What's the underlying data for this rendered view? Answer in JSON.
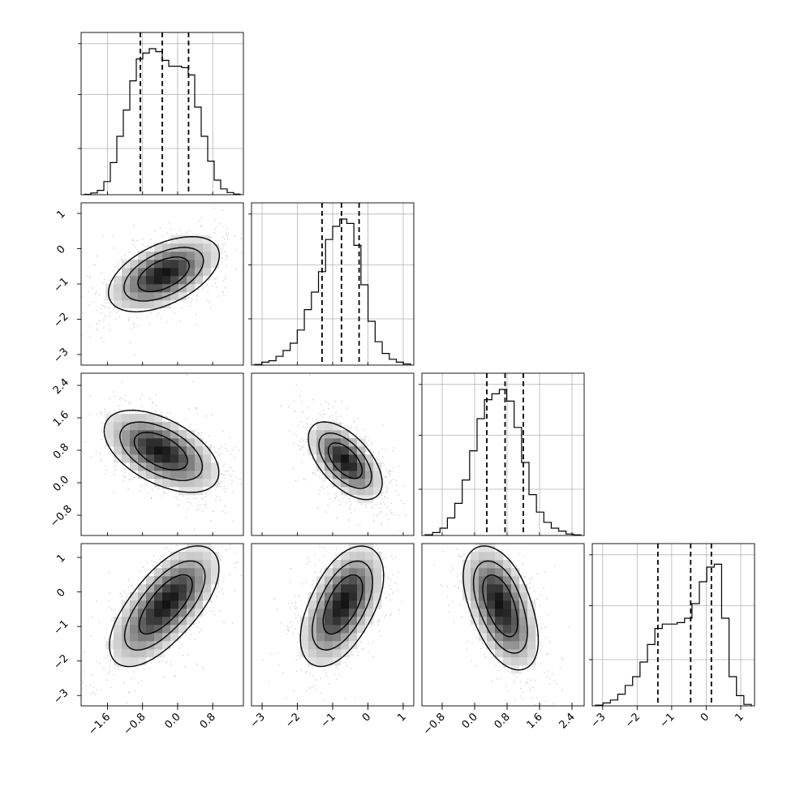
{
  "chart_data": {
    "type": "corner",
    "parameters": [
      {
        "ticks": [
          "−1.6",
          "−0.8",
          "0.0",
          "0.8"
        ],
        "tick_values": [
          -1.6,
          -0.8,
          0.0,
          0.8
        ],
        "range": [
          -2.2,
          1.5
        ],
        "quantiles": [
          -0.85,
          -0.35,
          0.25
        ],
        "histogram": [
          0.003,
          0.012,
          0.03,
          0.09,
          0.22,
          0.4,
          0.58,
          0.78,
          0.93,
          0.97,
          1.0,
          0.98,
          0.92,
          0.88,
          0.88,
          0.87,
          0.82,
          0.6,
          0.4,
          0.23,
          0.1,
          0.04,
          0.015,
          0.004
        ]
      },
      {
        "ticks": [
          "−3",
          "−2",
          "−1",
          "0",
          "1"
        ],
        "tick_values": [
          -3,
          -2,
          -1,
          0,
          1
        ],
        "range": [
          -3.3,
          1.3
        ],
        "quantiles": [
          -1.3,
          -0.75,
          -0.25
        ],
        "histogram": [
          0.004,
          0.02,
          0.03,
          0.06,
          0.1,
          0.15,
          0.24,
          0.38,
          0.5,
          0.64,
          0.86,
          0.95,
          1.0,
          0.97,
          0.82,
          0.55,
          0.3,
          0.16,
          0.08,
          0.04,
          0.02,
          0.008
        ]
      },
      {
        "ticks": [
          "−0.8",
          "0.0",
          "0.8",
          "1.6",
          "2.4"
        ],
        "tick_values": [
          -0.8,
          0.0,
          0.8,
          1.6,
          2.4
        ],
        "range": [
          -1.3,
          2.7
        ],
        "quantiles": [
          0.3,
          0.75,
          1.2
        ],
        "histogram": [
          0.005,
          0.02,
          0.05,
          0.12,
          0.22,
          0.38,
          0.58,
          0.8,
          0.93,
          0.97,
          1.0,
          0.92,
          0.74,
          0.5,
          0.28,
          0.16,
          0.09,
          0.05,
          0.03,
          0.01,
          0.004
        ]
      },
      {
        "ticks": [
          "−3",
          "−2",
          "−1",
          "0",
          "1"
        ],
        "tick_values": [
          -3,
          -2,
          -1,
          0,
          1
        ],
        "range": [
          -3.3,
          1.4
        ],
        "quantiles": [
          -1.4,
          -0.45,
          0.15
        ],
        "histogram": [
          0.005,
          0.02,
          0.04,
          0.08,
          0.14,
          0.2,
          0.3,
          0.42,
          0.53,
          0.56,
          0.56,
          0.57,
          0.6,
          0.7,
          0.85,
          0.95,
          0.97,
          0.6,
          0.2,
          0.07,
          0.01
        ]
      }
    ],
    "pairs": [
      {
        "row": 1,
        "col": 0,
        "points": [
          [
            -0.55,
            -0.85
          ],
          [
            0.0,
            -0.55
          ]
        ],
        "spread": [
          0.62,
          0.55
        ],
        "rho": 0.45
      },
      {
        "row": 2,
        "col": 0,
        "points": [
          [
            -0.65,
            0.9
          ],
          [
            0.0,
            0.6
          ]
        ],
        "spread": [
          0.62,
          0.52
        ],
        "rho": -0.45
      },
      {
        "row": 2,
        "col": 1,
        "points": [
          [
            -0.75,
            0.65
          ],
          [
            -0.5,
            0.4
          ]
        ],
        "spread": [
          0.55,
          0.5
        ],
        "rho": -0.55
      },
      {
        "row": 3,
        "col": 0,
        "points": [
          [
            0.0,
            0.05
          ],
          [
            -0.7,
            -1.0
          ]
        ],
        "spread": [
          0.55,
          0.75
        ],
        "rho": 0.5
      },
      {
        "row": 3,
        "col": 1,
        "points": [
          [
            -0.5,
            0.05
          ],
          [
            -1.05,
            -1.0
          ]
        ],
        "spread": [
          0.55,
          0.75
        ],
        "rho": 0.35
      },
      {
        "row": 3,
        "col": 2,
        "points": [
          [
            0.5,
            0.05
          ],
          [
            0.85,
            -1.1
          ]
        ],
        "spread": [
          0.45,
          0.75
        ],
        "rho": -0.35
      }
    ]
  }
}
